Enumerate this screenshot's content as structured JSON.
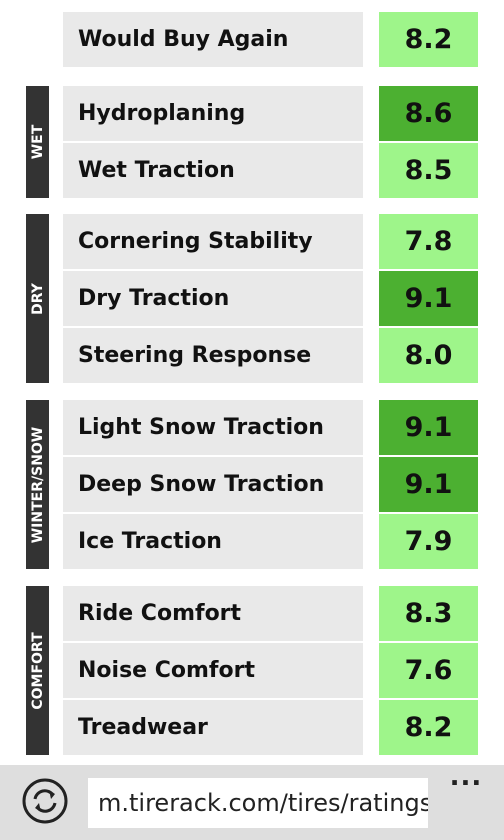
{
  "ratings": {
    "top": {
      "label": "Would Buy Again",
      "score": "8.2",
      "color": "#9ef58a"
    },
    "groups": [
      {
        "name": "WET",
        "rows": [
          {
            "label": "Hydroplaning",
            "score": "8.6",
            "color": "#4cb031"
          },
          {
            "label": "Wet Traction",
            "score": "8.5",
            "color": "#9ef58a"
          }
        ]
      },
      {
        "name": "DRY",
        "rows": [
          {
            "label": "Cornering Stability",
            "score": "7.8",
            "color": "#9ef58a"
          },
          {
            "label": "Dry Traction",
            "score": "9.1",
            "color": "#4cb031"
          },
          {
            "label": "Steering Response",
            "score": "8.0",
            "color": "#9ef58a"
          }
        ]
      },
      {
        "name": "WINTER/SNOW",
        "rows": [
          {
            "label": "Light Snow Traction",
            "score": "9.1",
            "color": "#4cb031"
          },
          {
            "label": "Deep Snow Traction",
            "score": "9.1",
            "color": "#4cb031"
          },
          {
            "label": "Ice Traction",
            "score": "7.9",
            "color": "#9ef58a"
          }
        ]
      },
      {
        "name": "COMFORT",
        "rows": [
          {
            "label": "Ride Comfort",
            "score": "8.3",
            "color": "#9ef58a"
          },
          {
            "label": "Noise Comfort",
            "score": "7.6",
            "color": "#9ef58a"
          },
          {
            "label": "Treadwear",
            "score": "8.2",
            "color": "#9ef58a"
          }
        ]
      }
    ]
  },
  "browser": {
    "url": "m.tirerack.com/tires/ratings-",
    "menu": "..."
  }
}
